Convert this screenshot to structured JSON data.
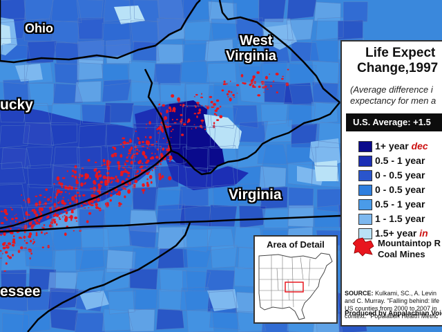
{
  "map": {
    "states": {
      "ohio": "Ohio",
      "west_virginia_line1": "West",
      "west_virginia_line2": "Virginia",
      "kentucky": "ucky",
      "virginia": "Virginia",
      "tennessee": "essee"
    },
    "colors": {
      "decline_1plus": "#0a0a8c",
      "decline_05_1": "#1c2fb5",
      "decline_0_05": "#2a55cc",
      "increase_0_05": "#2f7fde",
      "increase_05_1": "#4a9be8",
      "increase_1_15": "#7db8ef",
      "increase_15plus": "#b9e2f7",
      "mines": "#e8161e",
      "borders": "#000000"
    }
  },
  "legend": {
    "title_line1": "Life Expect",
    "title_line2": "Change,1997",
    "subtitle_line1": "(Average difference i",
    "subtitle_line2": "expectancy for men a",
    "us_average": "U.S. Average: +1.5",
    "items": [
      {
        "value": "1+ year ",
        "keyword": "dec",
        "color": "#0a0a8c"
      },
      {
        "value": "0.5 - 1 year ",
        "keyword": "",
        "color": "#1c2fb5"
      },
      {
        "value": "0 - 0.5 year ",
        "keyword": "",
        "color": "#2a55cc"
      },
      {
        "value": "0 - 0.5 year ",
        "keyword": "",
        "color": "#2f7fde"
      },
      {
        "value": "0.5 - 1 year ",
        "keyword": "",
        "color": "#4a9be8"
      },
      {
        "value": "1 - 1.5 year ",
        "keyword": "",
        "color": "#7db8ef"
      },
      {
        "value": "1.5+ year ",
        "keyword": "in",
        "color": "#b9e2f7"
      }
    ],
    "mines_line1": "Mountaintop R",
    "mines_line2": "Coal Mines",
    "source_label": "SOURCE:",
    "source_line1": " Kulkami, SC., A. Levin",
    "source_line2": "and C. Murray. \"Falling behind: life",
    "source_line3": "US counties from 2000 to 2007 in",
    "source_line4": "context.\" Population Health Metric",
    "produced_by": "Produced by Appalachian Voic"
  },
  "inset": {
    "title": "Area of Detail"
  }
}
